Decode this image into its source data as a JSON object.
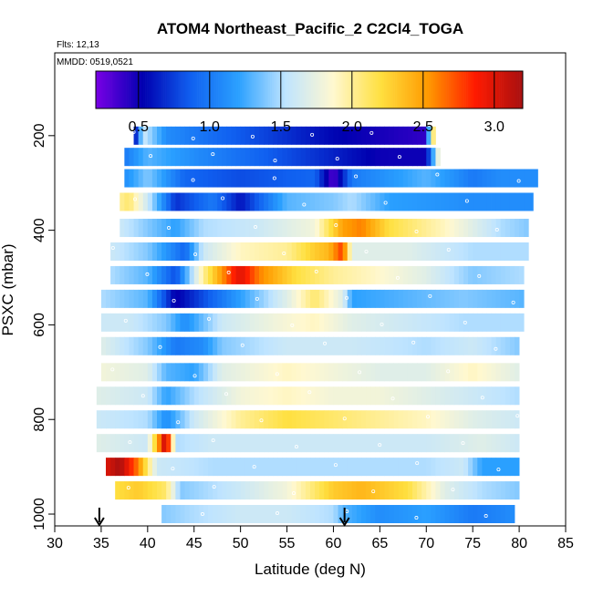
{
  "chart_data": {
    "type": "heatmap",
    "title": "ATOM4 Northeast_Pacific_2 C2Cl4_TOGA",
    "flights_label": "Flts: 12,13",
    "dates_label": "MMDD: 0519,0521",
    "xlabel": "Latitude (deg N)",
    "ylabel": "PSXC (mbar)",
    "xlim": [
      30,
      85
    ],
    "ylim": [
      1025,
      25
    ],
    "x_ticks": [
      30,
      35,
      40,
      45,
      50,
      55,
      60,
      65,
      70,
      75,
      80,
      85
    ],
    "y_ticks": [
      200,
      400,
      600,
      800,
      1000
    ],
    "colorbar": {
      "range": [
        0.2,
        3.2
      ],
      "ticks": [
        0.5,
        1.0,
        1.5,
        2.0,
        2.5,
        3.0
      ],
      "tick_labels": [
        "0.5",
        "1.0",
        "1.5",
        "2.0",
        "2.5",
        "3.0"
      ],
      "colors": [
        "#7a00e6",
        "#0000b0",
        "#1060f0",
        "#2aa0ff",
        "#bfe4ff",
        "#fff8d0",
        "#ffe040",
        "#ff9a00",
        "#ff1a00",
        "#a81010"
      ]
    },
    "arrows_lat": [
      34.8,
      61.2
    ],
    "bands": [
      {
        "p": 200,
        "x0": 38.5,
        "x1": 71,
        "values": [
          [
            38.5,
            0.4
          ],
          [
            39.5,
            1.6
          ],
          [
            42,
            1.1
          ],
          [
            48,
            0.9
          ],
          [
            60,
            0.55
          ],
          [
            70,
            0.4
          ],
          [
            70.5,
            2.1
          ],
          [
            71,
            2.0
          ]
        ]
      },
      {
        "p": 245,
        "x0": 37.5,
        "x1": 71.5,
        "values": [
          [
            37.5,
            1.0
          ],
          [
            40,
            1.3
          ],
          [
            45,
            1.1
          ],
          [
            55,
            0.8
          ],
          [
            65,
            0.5
          ],
          [
            70,
            0.5
          ],
          [
            71.5,
            2.0
          ]
        ]
      },
      {
        "p": 290,
        "x0": 37.5,
        "x1": 82,
        "values": [
          [
            37.5,
            1.1
          ],
          [
            40,
            1.4
          ],
          [
            44,
            0.9
          ],
          [
            50,
            0.8
          ],
          [
            58,
            0.9
          ],
          [
            60,
            0.3
          ],
          [
            62,
            1.0
          ],
          [
            70,
            1.3
          ],
          [
            75,
            1.0
          ],
          [
            78,
            1.1
          ],
          [
            82,
            1.1
          ]
        ]
      },
      {
        "p": 340,
        "x0": 37,
        "x1": 81.5,
        "values": [
          [
            37,
            2.0
          ],
          [
            38,
            2.1
          ],
          [
            40,
            1.6
          ],
          [
            43,
            0.7
          ],
          [
            47,
            1.0
          ],
          [
            50,
            0.6
          ],
          [
            55,
            1.3
          ],
          [
            60,
            1.4
          ],
          [
            62,
            1.5
          ],
          [
            66,
            1.2
          ],
          [
            75,
            1.1
          ],
          [
            81.5,
            1.1
          ]
        ]
      },
      {
        "p": 395,
        "x0": 37,
        "x1": 81,
        "values": [
          [
            37,
            1.6
          ],
          [
            40,
            1.4
          ],
          [
            43,
            1.2
          ],
          [
            46,
            1.5
          ],
          [
            52,
            1.6
          ],
          [
            58,
            1.8
          ],
          [
            61,
            2.5
          ],
          [
            63,
            2.6
          ],
          [
            66,
            2.2
          ],
          [
            72,
            1.9
          ],
          [
            78,
            1.5
          ],
          [
            81,
            1.4
          ]
        ]
      },
      {
        "p": 445,
        "x0": 36,
        "x1": 81,
        "values": [
          [
            36,
            1.6
          ],
          [
            40,
            1.4
          ],
          [
            44,
            0.9
          ],
          [
            46,
            1.6
          ],
          [
            50,
            1.9
          ],
          [
            55,
            2.0
          ],
          [
            58,
            2.3
          ],
          [
            59.5,
            2.4
          ],
          [
            61,
            2.8
          ],
          [
            62,
            1.7
          ],
          [
            68,
            1.7
          ],
          [
            75,
            1.5
          ],
          [
            81,
            1.5
          ]
        ]
      },
      {
        "p": 495,
        "x0": 36,
        "x1": 80.5,
        "values": [
          [
            36,
            1.5
          ],
          [
            40,
            1.3
          ],
          [
            43,
            0.8
          ],
          [
            46,
            2.0
          ],
          [
            49,
            2.8
          ],
          [
            50,
            3.0
          ],
          [
            52,
            2.6
          ],
          [
            56,
            2.2
          ],
          [
            60,
            2.0
          ],
          [
            64,
            1.9
          ],
          [
            70,
            1.7
          ],
          [
            75,
            1.4
          ],
          [
            80.5,
            1.5
          ]
        ]
      },
      {
        "p": 545,
        "x0": 35,
        "x1": 80.5,
        "values": [
          [
            35,
            1.5
          ],
          [
            40,
            1.3
          ],
          [
            43,
            0.5
          ],
          [
            46,
            0.8
          ],
          [
            50,
            1.2
          ],
          [
            55,
            1.7
          ],
          [
            58,
            2.1
          ],
          [
            61,
            1.7
          ],
          [
            62,
            1.2
          ],
          [
            68,
            1.3
          ],
          [
            74,
            1.4
          ],
          [
            80.5,
            1.3
          ]
        ]
      },
      {
        "p": 595,
        "x0": 35,
        "x1": 80.5,
        "values": [
          [
            35,
            1.6
          ],
          [
            38,
            1.6
          ],
          [
            42,
            1.4
          ],
          [
            44,
            1.1
          ],
          [
            48,
            1.6
          ],
          [
            54,
            1.8
          ],
          [
            58,
            1.9
          ],
          [
            62,
            1.7
          ],
          [
            68,
            1.6
          ],
          [
            74,
            1.5
          ],
          [
            80.5,
            1.5
          ]
        ]
      },
      {
        "p": 645,
        "x0": 35,
        "x1": 80,
        "values": [
          [
            35,
            1.7
          ],
          [
            40,
            1.4
          ],
          [
            43,
            1.0
          ],
          [
            46,
            1.1
          ],
          [
            48,
            1.4
          ],
          [
            55,
            1.6
          ],
          [
            62,
            1.6
          ],
          [
            70,
            1.5
          ],
          [
            75,
            1.6
          ],
          [
            80,
            1.4
          ]
        ]
      },
      {
        "p": 700,
        "x0": 35,
        "x1": 80,
        "values": [
          [
            35,
            1.8
          ],
          [
            40,
            1.7
          ],
          [
            42,
            1.3
          ],
          [
            45,
            1.2
          ],
          [
            48,
            1.7
          ],
          [
            55,
            1.9
          ],
          [
            60,
            1.8
          ],
          [
            65,
            1.7
          ],
          [
            70,
            1.7
          ],
          [
            75,
            1.9
          ],
          [
            80,
            1.7
          ]
        ]
      },
      {
        "p": 750,
        "x0": 34.5,
        "x1": 80,
        "values": [
          [
            34.5,
            1.7
          ],
          [
            40,
            1.6
          ],
          [
            42,
            1.2
          ],
          [
            45,
            1.5
          ],
          [
            50,
            1.8
          ],
          [
            55,
            1.9
          ],
          [
            60,
            1.8
          ],
          [
            65,
            1.8
          ],
          [
            70,
            1.7
          ],
          [
            75,
            1.6
          ],
          [
            80,
            1.5
          ]
        ]
      },
      {
        "p": 800,
        "x0": 34.5,
        "x1": 80,
        "values": [
          [
            34.5,
            1.6
          ],
          [
            40,
            1.5
          ],
          [
            42,
            1.1
          ],
          [
            45,
            1.6
          ],
          [
            50,
            2.0
          ],
          [
            55,
            2.2
          ],
          [
            60,
            2.1
          ],
          [
            65,
            2.0
          ],
          [
            70,
            1.9
          ],
          [
            75,
            1.7
          ],
          [
            80,
            1.6
          ]
        ]
      },
      {
        "p": 850,
        "x0": 34.5,
        "x1": 80,
        "values": [
          [
            34.5,
            1.7
          ],
          [
            40,
            1.6
          ],
          [
            42,
            3.2
          ],
          [
            43,
            1.5
          ],
          [
            47,
            1.6
          ],
          [
            55,
            1.6
          ],
          [
            62,
            1.6
          ],
          [
            70,
            1.6
          ],
          [
            76,
            1.7
          ],
          [
            80,
            1.6
          ]
        ]
      },
      {
        "p": 900,
        "x0": 35.5,
        "x1": 80,
        "values": [
          [
            35.5,
            3.0
          ],
          [
            37,
            3.2
          ],
          [
            39,
            2.6
          ],
          [
            41,
            1.6
          ],
          [
            47,
            1.5
          ],
          [
            55,
            1.5
          ],
          [
            62,
            1.5
          ],
          [
            70,
            1.5
          ],
          [
            74,
            1.6
          ],
          [
            76,
            1.2
          ],
          [
            80,
            1.2
          ]
        ]
      },
      {
        "p": 950,
        "x0": 36.5,
        "x1": 80,
        "values": [
          [
            36.5,
            2.2
          ],
          [
            39,
            2.3
          ],
          [
            42,
            2.1
          ],
          [
            43.5,
            1.4
          ],
          [
            50,
            1.6
          ],
          [
            55,
            1.8
          ],
          [
            60,
            2.3
          ],
          [
            63,
            2.4
          ],
          [
            68,
            2.2
          ],
          [
            72,
            1.7
          ],
          [
            76,
            1.5
          ],
          [
            80,
            1.4
          ]
        ]
      },
      {
        "p": 1000,
        "x0": 41.5,
        "x1": 79.5,
        "values": [
          [
            41.5,
            1.4
          ],
          [
            45,
            1.5
          ],
          [
            50,
            1.6
          ],
          [
            55,
            1.6
          ],
          [
            60,
            1.5
          ],
          [
            61,
            1.3
          ],
          [
            65,
            1.1
          ],
          [
            70,
            1.2
          ],
          [
            75,
            1.0
          ],
          [
            79.5,
            1.1
          ]
        ]
      }
    ]
  }
}
